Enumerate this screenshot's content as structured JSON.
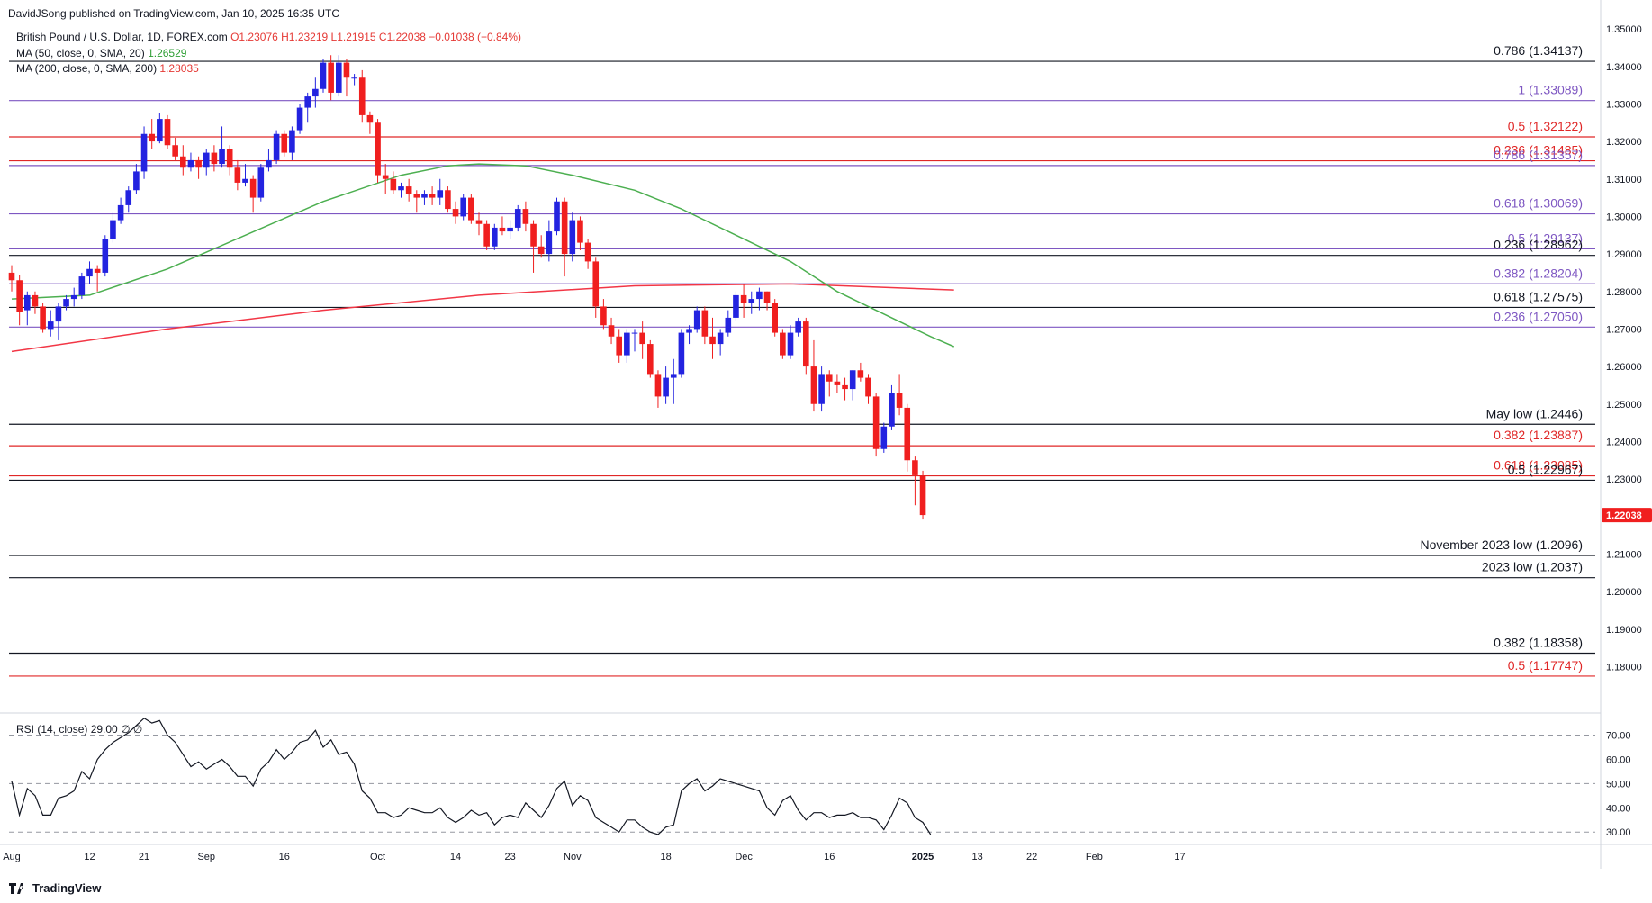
{
  "header": {
    "published": "DavidJSong published on TradingView.com, Jan 10, 2025 16:35 UTC",
    "symbol": "British Pound / U.S. Dollar, 1D, FOREX.com",
    "ohlc": "O1.23076 H1.23219 L1.21915 C1.22038 −0.01038 (−0.84%)",
    "ma50_label": "MA (50, close, 0, SMA, 20)",
    "ma50_value": "1.26529",
    "ma200_label": "MA (200, close, 0, SMA, 200)",
    "ma200_value": "1.28035",
    "rsi_label": "RSI (14, close)",
    "rsi_value": "29.00",
    "rsi_extra": "∅ ∅",
    "last_price": "1.22038"
  },
  "footer": {
    "brand": "TradingView"
  },
  "colors": {
    "up": "#2323e0",
    "down": "#f01f1f",
    "ma50": "#4caf50",
    "ma200": "#f23645",
    "fib_purple": "#7e57c2",
    "fib_red": "#e02727",
    "level_black": "#131722",
    "rsi": "#131722"
  },
  "chart_data": [
    {
      "type": "candlestick",
      "title": "British Pound / U.S. Dollar, 1D, FOREX.com",
      "y_ticks": [
        "1.18000",
        "1.19000",
        "1.20000",
        "1.21000",
        "1.22000",
        "1.23000",
        "1.24000",
        "1.25000",
        "1.26000",
        "1.27000",
        "1.28000",
        "1.29000",
        "1.30000",
        "1.31000",
        "1.32000",
        "1.33000",
        "1.34000",
        "1.35000"
      ],
      "ylim": [
        1.1705,
        1.3505
      ],
      "x_ticks": [
        {
          "label": "Aug",
          "bar": 0
        },
        {
          "label": "12",
          "bar": 10
        },
        {
          "label": "21",
          "bar": 17
        },
        {
          "label": "Sep",
          "bar": 25
        },
        {
          "label": "16",
          "bar": 35
        },
        {
          "label": "Oct",
          "bar": 47
        },
        {
          "label": "14",
          "bar": 57
        },
        {
          "label": "23",
          "bar": 64
        },
        {
          "label": "Nov",
          "bar": 72
        },
        {
          "label": "18",
          "bar": 84
        },
        {
          "label": "Dec",
          "bar": 94
        },
        {
          "label": "16",
          "bar": 105
        },
        {
          "label": "2025",
          "bar": 117
        },
        {
          "label": "13",
          "bar": 124
        },
        {
          "label": "22",
          "bar": 131
        },
        {
          "label": "Feb",
          "bar": 139
        },
        {
          "label": "17",
          "bar": 150
        }
      ],
      "candles": [
        [
          1.285,
          1.287,
          1.28,
          1.283
        ],
        [
          1.283,
          1.2845,
          1.271,
          1.2745
        ],
        [
          1.275,
          1.28,
          1.271,
          1.279
        ],
        [
          1.279,
          1.28,
          1.274,
          1.276
        ],
        [
          1.276,
          1.277,
          1.269,
          1.27
        ],
        [
          1.27,
          1.275,
          1.268,
          1.272
        ],
        [
          1.272,
          1.277,
          1.267,
          1.276
        ],
        [
          1.276,
          1.279,
          1.275,
          1.278
        ],
        [
          1.278,
          1.281,
          1.276,
          1.279
        ],
        [
          1.279,
          1.285,
          1.278,
          1.284
        ],
        [
          1.284,
          1.288,
          1.282,
          1.286
        ],
        [
          1.286,
          1.287,
          1.28,
          1.285
        ],
        [
          1.285,
          1.295,
          1.284,
          1.294
        ],
        [
          1.294,
          1.301,
          1.293,
          1.299
        ],
        [
          1.299,
          1.305,
          1.298,
          1.303
        ],
        [
          1.303,
          1.308,
          1.301,
          1.307
        ],
        [
          1.307,
          1.314,
          1.306,
          1.312
        ],
        [
          1.312,
          1.324,
          1.31,
          1.322
        ],
        [
          1.322,
          1.326,
          1.318,
          1.32
        ],
        [
          1.32,
          1.3275,
          1.3195,
          1.326
        ],
        [
          1.326,
          1.327,
          1.318,
          1.319
        ],
        [
          1.319,
          1.321,
          1.315,
          1.316
        ],
        [
          1.316,
          1.319,
          1.311,
          1.313
        ],
        [
          1.313,
          1.317,
          1.312,
          1.315
        ],
        [
          1.315,
          1.316,
          1.31,
          1.313
        ],
        [
          1.313,
          1.318,
          1.311,
          1.317
        ],
        [
          1.317,
          1.319,
          1.312,
          1.314
        ],
        [
          1.314,
          1.324,
          1.313,
          1.318
        ],
        [
          1.318,
          1.319,
          1.311,
          1.313
        ],
        [
          1.313,
          1.315,
          1.307,
          1.309
        ],
        [
          1.309,
          1.314,
          1.308,
          1.31
        ],
        [
          1.31,
          1.311,
          1.301,
          1.305
        ],
        [
          1.305,
          1.314,
          1.304,
          1.313
        ],
        [
          1.313,
          1.318,
          1.312,
          1.315
        ],
        [
          1.315,
          1.323,
          1.314,
          1.322
        ],
        [
          1.322,
          1.323,
          1.316,
          1.317
        ],
        [
          1.317,
          1.324,
          1.315,
          1.323
        ],
        [
          1.323,
          1.33,
          1.322,
          1.329
        ],
        [
          1.329,
          1.333,
          1.325,
          1.332
        ],
        [
          1.332,
          1.337,
          1.329,
          1.334
        ],
        [
          1.334,
          1.342,
          1.333,
          1.341
        ],
        [
          1.341,
          1.343,
          1.331,
          1.333
        ],
        [
          1.333,
          1.343,
          1.332,
          1.341
        ],
        [
          1.341,
          1.342,
          1.332,
          1.337
        ],
        [
          1.337,
          1.338,
          1.335,
          1.337
        ],
        [
          1.337,
          1.339,
          1.325,
          1.327
        ],
        [
          1.327,
          1.328,
          1.322,
          1.325
        ],
        [
          1.325,
          1.326,
          1.309,
          1.311
        ],
        [
          1.311,
          1.314,
          1.306,
          1.31
        ],
        [
          1.31,
          1.312,
          1.306,
          1.307
        ],
        [
          1.307,
          1.309,
          1.305,
          1.308
        ],
        [
          1.308,
          1.31,
          1.304,
          1.306
        ],
        [
          1.306,
          1.307,
          1.301,
          1.305
        ],
        [
          1.305,
          1.307,
          1.303,
          1.306
        ],
        [
          1.306,
          1.308,
          1.303,
          1.305
        ],
        [
          1.305,
          1.31,
          1.303,
          1.307
        ],
        [
          1.307,
          1.308,
          1.301,
          1.302
        ],
        [
          1.302,
          1.304,
          1.298,
          1.3
        ],
        [
          1.3,
          1.306,
          1.299,
          1.305
        ],
        [
          1.305,
          1.306,
          1.298,
          1.299
        ],
        [
          1.299,
          1.301,
          1.295,
          1.298
        ],
        [
          1.298,
          1.299,
          1.291,
          1.292
        ],
        [
          1.292,
          1.298,
          1.291,
          1.297
        ],
        [
          1.297,
          1.3,
          1.295,
          1.296
        ],
        [
          1.296,
          1.299,
          1.294,
          1.297
        ],
        [
          1.297,
          1.303,
          1.296,
          1.302
        ],
        [
          1.302,
          1.304,
          1.296,
          1.298
        ],
        [
          1.298,
          1.299,
          1.285,
          1.292
        ],
        [
          1.292,
          1.295,
          1.289,
          1.29
        ],
        [
          1.29,
          1.299,
          1.288,
          1.296
        ],
        [
          1.296,
          1.305,
          1.295,
          1.304
        ],
        [
          1.304,
          1.305,
          1.284,
          1.29
        ],
        [
          1.29,
          1.301,
          1.288,
          1.299
        ],
        [
          1.299,
          1.3,
          1.291,
          1.293
        ],
        [
          1.293,
          1.294,
          1.286,
          1.288
        ],
        [
          1.288,
          1.289,
          1.273,
          1.276
        ],
        [
          1.276,
          1.278,
          1.27,
          1.271
        ],
        [
          1.271,
          1.273,
          1.266,
          1.268
        ],
        [
          1.268,
          1.27,
          1.261,
          1.263
        ],
        [
          1.263,
          1.27,
          1.261,
          1.269
        ],
        [
          1.269,
          1.27,
          1.264,
          1.269
        ],
        [
          1.269,
          1.272,
          1.262,
          1.266
        ],
        [
          1.266,
          1.267,
          1.257,
          1.258
        ],
        [
          1.258,
          1.259,
          1.249,
          1.252
        ],
        [
          1.252,
          1.26,
          1.25,
          1.257
        ],
        [
          1.257,
          1.262,
          1.25,
          1.258
        ],
        [
          1.258,
          1.27,
          1.257,
          1.269
        ],
        [
          1.269,
          1.271,
          1.266,
          1.27
        ],
        [
          1.27,
          1.276,
          1.269,
          1.275
        ],
        [
          1.275,
          1.276,
          1.266,
          1.268
        ],
        [
          1.268,
          1.273,
          1.262,
          1.266
        ],
        [
          1.266,
          1.27,
          1.263,
          1.269
        ],
        [
          1.269,
          1.275,
          1.268,
          1.273
        ],
        [
          1.273,
          1.28,
          1.272,
          1.279
        ],
        [
          1.279,
          1.282,
          1.273,
          1.277
        ],
        [
          1.277,
          1.28,
          1.274,
          1.278
        ],
        [
          1.278,
          1.281,
          1.275,
          1.28
        ],
        [
          1.28,
          1.28,
          1.275,
          1.277
        ],
        [
          1.277,
          1.278,
          1.268,
          1.269
        ],
        [
          1.269,
          1.27,
          1.262,
          1.263
        ],
        [
          1.263,
          1.271,
          1.262,
          1.269
        ],
        [
          1.269,
          1.273,
          1.268,
          1.272
        ],
        [
          1.272,
          1.273,
          1.258,
          1.26
        ],
        [
          1.26,
          1.267,
          1.248,
          1.25
        ],
        [
          1.25,
          1.26,
          1.248,
          1.258
        ],
        [
          1.258,
          1.259,
          1.252,
          1.256
        ],
        [
          1.256,
          1.258,
          1.253,
          1.255
        ],
        [
          1.255,
          1.257,
          1.251,
          1.254
        ],
        [
          1.254,
          1.259,
          1.251,
          1.259
        ],
        [
          1.259,
          1.261,
          1.256,
          1.257
        ],
        [
          1.257,
          1.258,
          1.25,
          1.252
        ],
        [
          1.252,
          1.253,
          1.236,
          1.238
        ],
        [
          1.238,
          1.245,
          1.237,
          1.244
        ],
        [
          1.244,
          1.255,
          1.243,
          1.253
        ],
        [
          1.253,
          1.258,
          1.247,
          1.249
        ],
        [
          1.249,
          1.25,
          1.232,
          1.235
        ],
        [
          1.235,
          1.236,
          1.223,
          1.231
        ],
        [
          1.2308,
          1.2322,
          1.2192,
          1.2204
        ]
      ],
      "candle_format": "open, high, low, close",
      "ma50": [
        [
          0,
          1.278
        ],
        [
          10,
          1.279
        ],
        [
          20,
          1.286
        ],
        [
          30,
          1.295
        ],
        [
          40,
          1.304
        ],
        [
          50,
          1.311
        ],
        [
          56,
          1.3135
        ],
        [
          60,
          1.314
        ],
        [
          66,
          1.3135
        ],
        [
          72,
          1.311
        ],
        [
          80,
          1.307
        ],
        [
          86,
          1.302
        ],
        [
          92,
          1.296
        ],
        [
          100,
          1.288
        ],
        [
          106,
          1.28
        ],
        [
          112,
          1.274
        ],
        [
          118,
          1.268
        ],
        [
          121,
          1.2653
        ]
      ],
      "ma200": [
        [
          0,
          1.264
        ],
        [
          20,
          1.27
        ],
        [
          40,
          1.275
        ],
        [
          60,
          1.279
        ],
        [
          80,
          1.2815
        ],
        [
          100,
          1.282
        ],
        [
          121,
          1.2804
        ]
      ],
      "levels": [
        {
          "label": "0.786 (1.34137)",
          "value": 1.34137,
          "color": "black"
        },
        {
          "label": "1 (1.33089)",
          "value": 1.33089,
          "color": "purple"
        },
        {
          "label": "0.5 (1.32122)",
          "value": 1.32122,
          "color": "red"
        },
        {
          "label": "0.236 (1.31485)",
          "value": 1.31485,
          "color": "red"
        },
        {
          "label": "0.786 (1.31357)",
          "value": 1.31357,
          "color": "purple"
        },
        {
          "label": "0.618 (1.30069)",
          "value": 1.30069,
          "color": "purple"
        },
        {
          "label": "0.5 (1.29137)",
          "value": 1.29137,
          "color": "purple"
        },
        {
          "label": "0.236 (1.28962)",
          "value": 1.28962,
          "color": "black"
        },
        {
          "label": "0.382 (1.28204)",
          "value": 1.28204,
          "color": "purple"
        },
        {
          "label": "0.618 (1.27575)",
          "value": 1.27575,
          "color": "black"
        },
        {
          "label": "0.236 (1.27050)",
          "value": 1.2705,
          "color": "purple"
        },
        {
          "label": "May low (1.2446)",
          "value": 1.2446,
          "color": "black"
        },
        {
          "label": "0.382 (1.23887)",
          "value": 1.23887,
          "color": "red"
        },
        {
          "label": "0.618 (1.23085)",
          "value": 1.23085,
          "color": "red"
        },
        {
          "label": "0.5 (1.22967)",
          "value": 1.22967,
          "color": "black"
        },
        {
          "label": "November 2023 low (1.2096)",
          "value": 1.2096,
          "color": "black"
        },
        {
          "label": "2023 low (1.2037)",
          "value": 1.2037,
          "color": "black"
        },
        {
          "label": "0.382 (1.18358)",
          "value": 1.18358,
          "color": "black"
        },
        {
          "label": "0.5 (1.17747)",
          "value": 1.17747,
          "color": "red"
        }
      ]
    },
    {
      "type": "line",
      "title": "RSI (14, close)",
      "y_ticks": [
        "30.00",
        "40.00",
        "50.00",
        "60.00",
        "70.00"
      ],
      "ylim": [
        26,
        78
      ],
      "guides": [
        30,
        50,
        70
      ],
      "values": [
        51,
        37,
        48,
        45,
        37,
        37,
        44,
        45,
        47,
        55,
        52,
        60,
        64,
        67,
        69,
        71,
        74,
        77,
        75,
        76,
        70,
        67,
        62,
        57,
        59,
        56,
        58,
        60,
        57,
        53,
        53,
        49,
        56,
        59,
        64,
        60,
        63,
        67,
        68,
        72,
        65,
        68,
        62,
        63,
        58,
        47,
        44,
        38,
        38,
        36,
        37,
        40,
        39,
        38,
        38,
        40,
        36,
        34,
        36,
        39,
        37,
        38,
        33,
        36,
        37,
        36,
        42,
        39,
        36,
        41,
        48,
        51,
        41,
        45,
        43,
        36,
        34,
        32,
        30,
        35,
        35,
        32,
        30,
        29,
        32,
        33,
        47,
        50,
        52,
        47,
        49,
        52,
        51,
        50,
        49,
        48,
        47,
        40,
        37,
        43,
        45,
        39,
        35,
        38,
        38,
        36,
        37,
        37,
        38,
        36,
        36,
        35,
        31,
        37,
        44,
        42,
        36,
        34,
        29
      ]
    }
  ]
}
